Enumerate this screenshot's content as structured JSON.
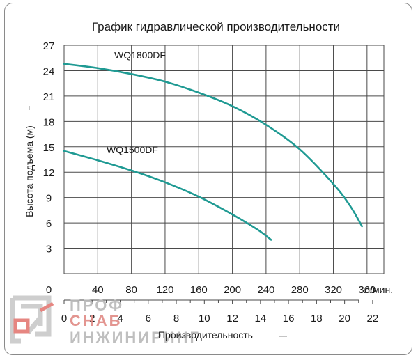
{
  "chart_data": {
    "type": "line",
    "title": "График гидравлической производительности",
    "ylabel": "Высота подъема (м)",
    "xlabel": "Производительность",
    "x_unit": "л/мин.",
    "ylim": [
      0,
      27
    ],
    "xlim": [
      0,
      380
    ],
    "grid": true,
    "y_ticks": [
      "3",
      "6",
      "9",
      "12",
      "15",
      "18",
      "21",
      "24",
      "27"
    ],
    "y_zero_label": "0",
    "x_ticks": [
      "0",
      "40",
      "80",
      "120",
      "160",
      "200",
      "240",
      "280",
      "320",
      "360"
    ],
    "x_ticks_m3h": [
      "0",
      "2",
      "4",
      "6",
      "8",
      "10",
      "12",
      "14",
      "16",
      "18",
      "20",
      "22"
    ],
    "series": [
      {
        "name": "WQ1800DF",
        "color": "#1f9a93",
        "x": [
          0,
          40,
          80,
          120,
          160,
          200,
          240,
          280,
          320,
          340,
          354
        ],
        "y": [
          24.8,
          24.3,
          23.6,
          22.7,
          21.4,
          19.8,
          17.6,
          14.7,
          10.6,
          8.0,
          5.6
        ]
      },
      {
        "name": "WQ1500DF",
        "color": "#1f9a93",
        "x": [
          0,
          40,
          80,
          120,
          160,
          200,
          230,
          246
        ],
        "y": [
          14.5,
          13.4,
          12.2,
          10.8,
          9.1,
          7.0,
          5.2,
          4.0
        ]
      }
    ]
  },
  "watermark": {
    "line1": "ПРОФ",
    "line2": "СНАБ",
    "line3": "ИНЖИНИРИНГ"
  }
}
